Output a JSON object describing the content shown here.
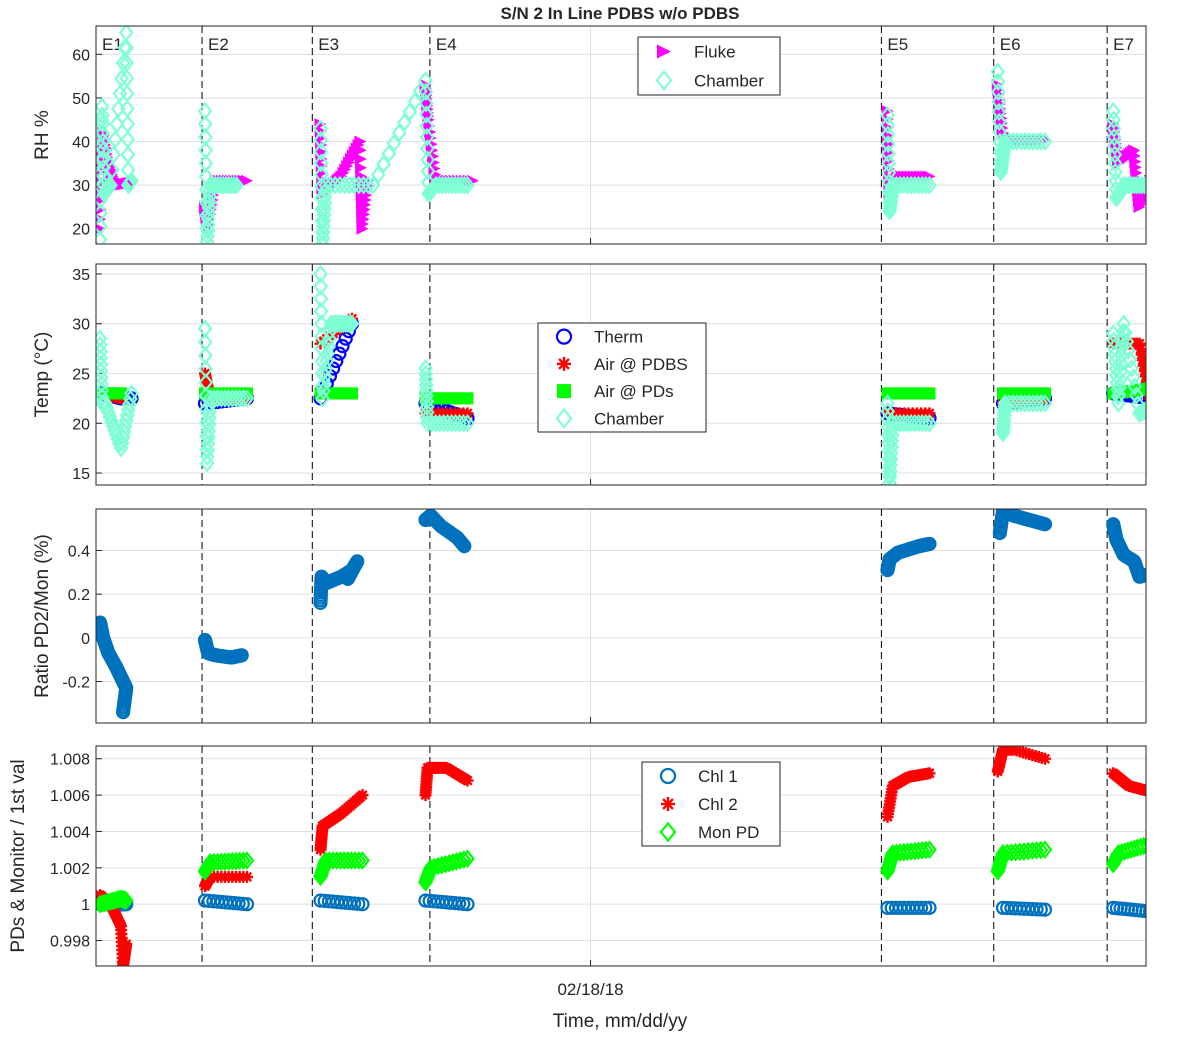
{
  "figure": {
    "title": "S/N 2 In Line PDBS w/o PDBS",
    "xlabel": "Time, mm/dd/yy",
    "x_tick_label": "02/18/18",
    "event_labels": [
      "E1",
      "E2",
      "E3",
      "E4",
      "E5",
      "E6",
      "E7"
    ]
  },
  "chart_data": [
    {
      "type": "scatter",
      "panel": "rh",
      "title": "S/N 2 In Line PDBS w/o PDBS",
      "ylabel": "RH %",
      "ylim": [
        16.5,
        66.5
      ],
      "yticks": [
        20,
        30,
        40,
        50,
        60
      ],
      "ytick_labels": [
        "20",
        "30",
        "40",
        "50",
        "60"
      ],
      "grid": true,
      "legend_position": "top-center",
      "series": [
        {
          "name": "Fluke",
          "color": "#ff00ff",
          "marker": "triangle-right",
          "points": [
            [
              0.0,
              20
            ],
            [
              0.003,
              42
            ],
            [
              0.008,
              35
            ],
            [
              0.015,
              30
            ],
            [
              0.03,
              30.5
            ],
            [
              0.1,
              25
            ],
            [
              0.103,
              20
            ],
            [
              0.11,
              31
            ],
            [
              0.14,
              31
            ],
            [
              0.21,
              44
            ],
            [
              0.212,
              28
            ],
            [
              0.23,
              32
            ],
            [
              0.248,
              40
            ],
            [
              0.25,
              20
            ],
            [
              0.255,
              31
            ],
            [
              0.31,
              53
            ],
            [
              0.313,
              45
            ],
            [
              0.32,
              31
            ],
            [
              0.355,
              31
            ],
            [
              0.75,
              47
            ],
            [
              0.752,
              28
            ],
            [
              0.76,
              32
            ],
            [
              0.79,
              32
            ],
            [
              0.855,
              53
            ],
            [
              0.86,
              42
            ],
            [
              0.87,
              40
            ],
            [
              0.9,
              40.5
            ],
            [
              0.965,
              44
            ],
            [
              0.97,
              35
            ],
            [
              0.985,
              38
            ],
            [
              0.99,
              25
            ],
            [
              1.0,
              31
            ]
          ]
        },
        {
          "name": "Chamber",
          "color": "#7fffd4",
          "marker": "diamond",
          "points": [
            [
              0.0,
              17.5
            ],
            [
              0.002,
              48
            ],
            [
              0.004,
              28
            ],
            [
              0.01,
              30
            ],
            [
              0.025,
              65
            ],
            [
              0.027,
              30
            ],
            [
              0.03,
              31
            ],
            [
              0.1,
              47
            ],
            [
              0.102,
              17
            ],
            [
              0.105,
              30
            ],
            [
              0.13,
              30
            ],
            [
              0.21,
              43
            ],
            [
              0.212,
              16.5
            ],
            [
              0.215,
              30
            ],
            [
              0.26,
              30
            ],
            [
              0.31,
              54
            ],
            [
              0.313,
              28
            ],
            [
              0.32,
              30
            ],
            [
              0.35,
              30
            ],
            [
              0.75,
              46
            ],
            [
              0.752,
              24
            ],
            [
              0.755,
              30
            ],
            [
              0.79,
              30
            ],
            [
              0.855,
              56
            ],
            [
              0.858,
              33
            ],
            [
              0.862,
              40
            ],
            [
              0.9,
              40
            ],
            [
              0.965,
              47
            ],
            [
              0.968,
              27
            ],
            [
              0.975,
              30
            ],
            [
              1.0,
              30
            ]
          ]
        }
      ]
    },
    {
      "type": "scatter",
      "panel": "temp",
      "ylabel": "Temp (°C)",
      "ylim": [
        13.8,
        36
      ],
      "yticks": [
        15,
        20,
        25,
        30,
        35
      ],
      "ytick_labels": [
        "15",
        "20",
        "25",
        "30",
        "35"
      ],
      "grid": true,
      "legend_position": "center",
      "series": [
        {
          "name": "Therm",
          "color": "#0000ff",
          "marker": "circle",
          "points": [
            [
              0.0,
              23
            ],
            [
              0.02,
              22.5
            ],
            [
              0.03,
              22.5
            ],
            [
              0.1,
              22
            ],
            [
              0.14,
              22.5
            ],
            [
              0.21,
              22.5
            ],
            [
              0.24,
              30
            ],
            [
              0.31,
              22
            ],
            [
              0.35,
              20.5
            ],
            [
              0.75,
              21
            ],
            [
              0.79,
              20.5
            ],
            [
              0.86,
              22
            ],
            [
              0.9,
              22.5
            ],
            [
              0.965,
              23
            ],
            [
              1.0,
              22.5
            ]
          ]
        },
        {
          "name": "Air @ PDBS",
          "color": "#ff0000",
          "marker": "asterisk",
          "points": [
            [
              0.0,
              23
            ],
            [
              0.02,
              22.5
            ],
            [
              0.1,
              25
            ],
            [
              0.105,
              22.5
            ],
            [
              0.14,
              22.5
            ],
            [
              0.21,
              28
            ],
            [
              0.24,
              30.5
            ],
            [
              0.31,
              21
            ],
            [
              0.35,
              21
            ],
            [
              0.75,
              21
            ],
            [
              0.79,
              21
            ],
            [
              0.86,
              22
            ],
            [
              0.9,
              22.5
            ],
            [
              0.965,
              28
            ],
            [
              0.99,
              28
            ],
            [
              1.0,
              22.5
            ]
          ]
        },
        {
          "name": "Air @ PDs",
          "color": "#00ff00",
          "marker": "square",
          "points": [
            [
              0.0,
              23
            ],
            [
              0.02,
              23
            ],
            [
              0.1,
              23
            ],
            [
              0.14,
              23
            ],
            [
              0.21,
              23
            ],
            [
              0.24,
              23
            ],
            [
              0.31,
              22.5
            ],
            [
              0.35,
              22.5
            ],
            [
              0.75,
              23
            ],
            [
              0.79,
              23
            ],
            [
              0.86,
              23
            ],
            [
              0.9,
              23
            ],
            [
              0.965,
              23
            ],
            [
              1.0,
              23.5
            ]
          ]
        },
        {
          "name": "Chamber",
          "color": "#7fffd4",
          "marker": "diamond",
          "points": [
            [
              0.0,
              28.5
            ],
            [
              0.002,
              22
            ],
            [
              0.005,
              22
            ],
            [
              0.02,
              17.5
            ],
            [
              0.03,
              23
            ],
            [
              0.1,
              29.5
            ],
            [
              0.102,
              16
            ],
            [
              0.105,
              22.5
            ],
            [
              0.14,
              22.5
            ],
            [
              0.21,
              35
            ],
            [
              0.212,
              22.5
            ],
            [
              0.22,
              30
            ],
            [
              0.24,
              30
            ],
            [
              0.31,
              25.5
            ],
            [
              0.312,
              20
            ],
            [
              0.35,
              20
            ],
            [
              0.75,
              22
            ],
            [
              0.752,
              14
            ],
            [
              0.755,
              20
            ],
            [
              0.79,
              20
            ],
            [
              0.86,
              19
            ],
            [
              0.862,
              22
            ],
            [
              0.9,
              22
            ],
            [
              0.965,
              29
            ],
            [
              0.97,
              22
            ],
            [
              0.975,
              30
            ],
            [
              0.99,
              21
            ],
            [
              1.0,
              21.5
            ]
          ]
        }
      ]
    },
    {
      "type": "scatter",
      "panel": "ratio",
      "ylabel": "Ratio PD2/Mon (%)",
      "ylim": [
        -0.39,
        0.59
      ],
      "yticks": [
        -0.2,
        0,
        0.2,
        0.4
      ],
      "ytick_labels": [
        "-0.2",
        "0",
        "0.2",
        "0.4"
      ],
      "grid": true,
      "series": [
        {
          "name": "",
          "color": "#0072bd",
          "marker": "circle",
          "points": [
            [
              0.0,
              0.07
            ],
            [
              0.003,
              0.0
            ],
            [
              0.008,
              -0.07
            ],
            [
              0.015,
              -0.13
            ],
            [
              0.02,
              -0.18
            ],
            [
              0.025,
              -0.23
            ],
            [
              0.022,
              -0.34
            ],
            [
              0.1,
              -0.01
            ],
            [
              0.103,
              -0.07
            ],
            [
              0.11,
              -0.08
            ],
            [
              0.125,
              -0.09
            ],
            [
              0.135,
              -0.08
            ],
            [
              0.21,
              0.16
            ],
            [
              0.211,
              0.28
            ],
            [
              0.215,
              0.25
            ],
            [
              0.23,
              0.28
            ],
            [
              0.24,
              0.31
            ],
            [
              0.245,
              0.35
            ],
            [
              0.236,
              0.27
            ],
            [
              0.31,
              0.54
            ],
            [
              0.315,
              0.56
            ],
            [
              0.325,
              0.51
            ],
            [
              0.34,
              0.46
            ],
            [
              0.347,
              0.42
            ],
            [
              0.75,
              0.31
            ],
            [
              0.752,
              0.36
            ],
            [
              0.76,
              0.39
            ],
            [
              0.78,
              0.42
            ],
            [
              0.79,
              0.43
            ],
            [
              0.857,
              0.48
            ],
            [
              0.86,
              0.58
            ],
            [
              0.87,
              0.56
            ],
            [
              0.885,
              0.54
            ],
            [
              0.9,
              0.52
            ],
            [
              0.965,
              0.52
            ],
            [
              0.968,
              0.45
            ],
            [
              0.975,
              0.38
            ],
            [
              0.985,
              0.35
            ],
            [
              0.99,
              0.28
            ],
            [
              0.998,
              0.29
            ]
          ]
        }
      ]
    },
    {
      "type": "scatter",
      "panel": "pds",
      "ylabel": "PDs & Monitor / 1st val",
      "ylim": [
        0.9966,
        1.0087
      ],
      "yticks": [
        0.998,
        1.0,
        1.002,
        1.004,
        1.006,
        1.008
      ],
      "ytick_labels": [
        "0.998",
        "1",
        "1.002",
        "1.004",
        "1.006",
        "1.008"
      ],
      "grid": true,
      "legend_position": "top-right",
      "series": [
        {
          "name": "Chl 1",
          "color": "#0072bd",
          "marker": "circle",
          "points": [
            [
              0.0,
              1.0
            ],
            [
              0.02,
              1.0
            ],
            [
              0.025,
              1.0
            ],
            [
              0.1,
              1.0002
            ],
            [
              0.14,
              1.0
            ],
            [
              0.21,
              1.0002
            ],
            [
              0.25,
              1.0
            ],
            [
              0.31,
              1.0002
            ],
            [
              0.35,
              1.0
            ],
            [
              0.75,
              0.9998
            ],
            [
              0.79,
              0.9998
            ],
            [
              0.86,
              0.9998
            ],
            [
              0.9,
              0.9997
            ],
            [
              0.965,
              0.9998
            ],
            [
              1.0,
              0.9996
            ]
          ]
        },
        {
          "name": "Chl 2",
          "color": "#ff0000",
          "marker": "asterisk",
          "points": [
            [
              0.0,
              1.0005
            ],
            [
              0.01,
              1.0
            ],
            [
              0.02,
              0.9988
            ],
            [
              0.022,
              0.9966
            ],
            [
              0.025,
              0.9978
            ],
            [
              0.1,
              1.001
            ],
            [
              0.105,
              1.0015
            ],
            [
              0.14,
              1.0015
            ],
            [
              0.21,
              1.003
            ],
            [
              0.212,
              1.0043
            ],
            [
              0.23,
              1.005
            ],
            [
              0.25,
              1.006
            ],
            [
              0.31,
              1.006
            ],
            [
              0.312,
              1.0075
            ],
            [
              0.33,
              1.0075
            ],
            [
              0.35,
              1.0068
            ],
            [
              0.75,
              1.0048
            ],
            [
              0.755,
              1.0065
            ],
            [
              0.77,
              1.007
            ],
            [
              0.79,
              1.0072
            ],
            [
              0.855,
              1.0073
            ],
            [
              0.86,
              1.0085
            ],
            [
              0.87,
              1.0085
            ],
            [
              0.9,
              1.008
            ],
            [
              0.965,
              1.0072
            ],
            [
              0.98,
              1.0065
            ],
            [
              1.0,
              1.0062
            ]
          ]
        },
        {
          "name": "Mon PD",
          "color": "#00ff00",
          "marker": "diamond",
          "points": [
            [
              0.0,
              1.0
            ],
            [
              0.02,
              1.0003
            ],
            [
              0.025,
              1.0002
            ],
            [
              0.1,
              1.0018
            ],
            [
              0.105,
              1.0023
            ],
            [
              0.14,
              1.0024
            ],
            [
              0.21,
              1.0015
            ],
            [
              0.215,
              1.0024
            ],
            [
              0.25,
              1.0024
            ],
            [
              0.31,
              1.0012
            ],
            [
              0.315,
              1.002
            ],
            [
              0.35,
              1.0025
            ],
            [
              0.75,
              1.0018
            ],
            [
              0.755,
              1.0028
            ],
            [
              0.79,
              1.003
            ],
            [
              0.855,
              1.0018
            ],
            [
              0.86,
              1.0028
            ],
            [
              0.9,
              1.003
            ],
            [
              0.965,
              1.0022
            ],
            [
              0.97,
              1.0028
            ],
            [
              1.0,
              1.0033
            ]
          ]
        }
      ]
    }
  ]
}
